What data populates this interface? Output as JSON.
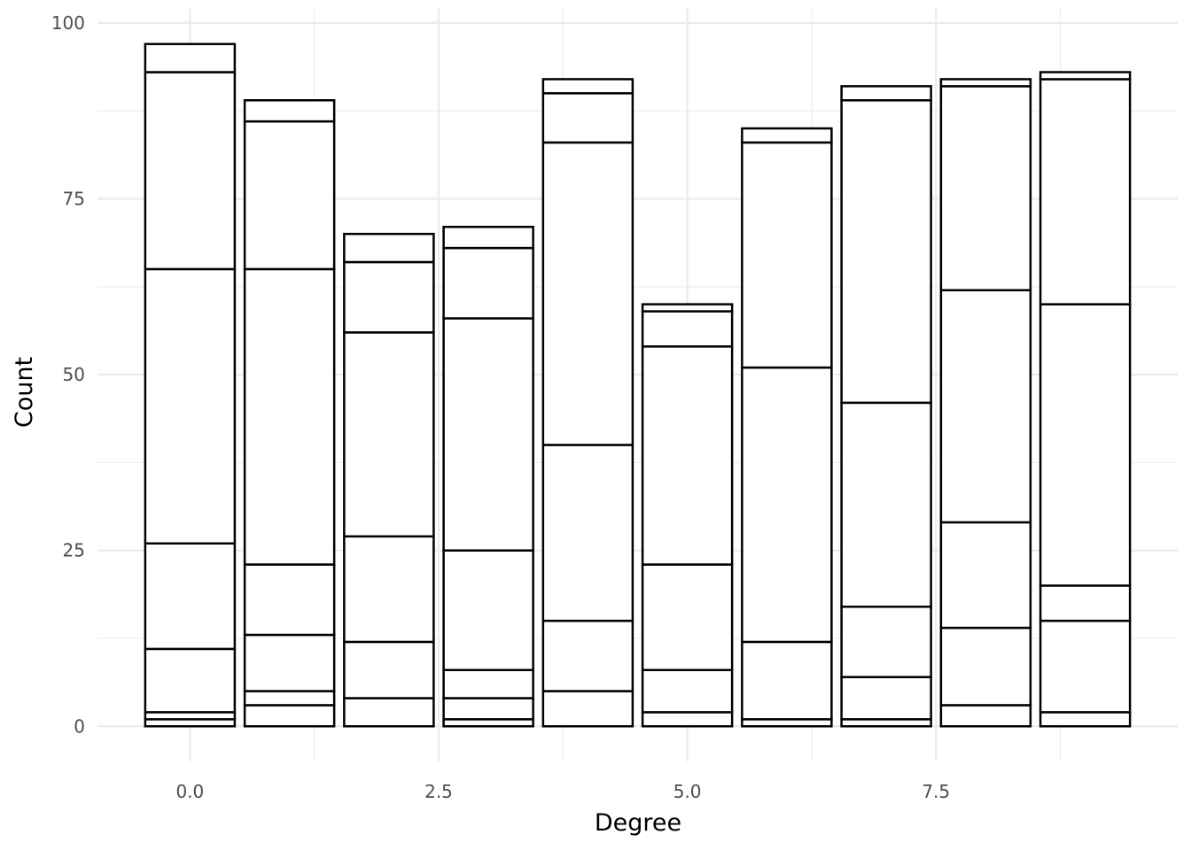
{
  "chart_data": {
    "type": "bar",
    "stacked": true,
    "title": "",
    "xlabel": "Degree",
    "ylabel": "Count",
    "x": [
      0,
      1,
      2,
      3,
      4,
      5,
      6,
      7,
      8,
      9
    ],
    "bar_width": 0.9,
    "xlim": [
      -0.93,
      9.93
    ],
    "ylim": [
      -5,
      102
    ],
    "x_ticks": [
      0,
      2.5,
      5,
      7.5
    ],
    "x_tick_labels": [
      "0.0",
      "2.5",
      "5.0",
      "7.5"
    ],
    "y_ticks": [
      0,
      25,
      50,
      75,
      100
    ],
    "y_tick_labels": [
      "0",
      "25",
      "50",
      "75",
      "100"
    ],
    "grid": true,
    "legend": "none",
    "fill_color": "#ffffff",
    "outline_color": "#000000",
    "stack_boundaries": [
      [
        1,
        2,
        11,
        26,
        65,
        93,
        97
      ],
      [
        3,
        5,
        13,
        23,
        65,
        86,
        89
      ],
      [
        4,
        12,
        27,
        56,
        66,
        70
      ],
      [
        1,
        4,
        8,
        25,
        58,
        68,
        71
      ],
      [
        5,
        15,
        40,
        83,
        90,
        92
      ],
      [
        2,
        8,
        23,
        54,
        59,
        60
      ],
      [
        1,
        12,
        51,
        83,
        85
      ],
      [
        1,
        7,
        17,
        46,
        89,
        91
      ],
      [
        3,
        14,
        29,
        62,
        91,
        92
      ],
      [
        2,
        15,
        20,
        60,
        92,
        93
      ]
    ]
  }
}
